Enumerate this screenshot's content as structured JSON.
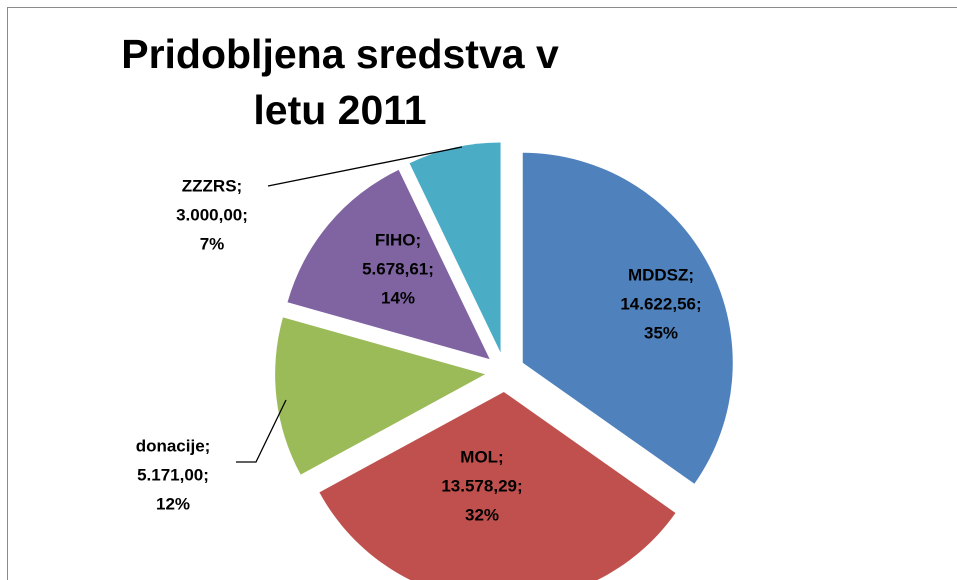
{
  "chart_data": {
    "type": "pie",
    "title": "Pridobljena sredstva v letu 2011",
    "categories": [
      "MDDSZ;",
      "MOL;",
      "donacije;",
      "FIHO;",
      "ZZZRS;"
    ],
    "values": [
      14622.56,
      13578.29,
      5171.0,
      5678.61,
      3000.0
    ],
    "value_labels": [
      "14.622,56;",
      "13.578,29;",
      "5.171,00;",
      "5.678,61;",
      "3.000,00;"
    ],
    "percents": [
      35,
      32,
      12,
      14,
      7
    ],
    "percent_labels": [
      "35%",
      "32%",
      "12%",
      "14%",
      "7%"
    ],
    "colors": [
      "#4f81bd",
      "#c0504d",
      "#9bbb59",
      "#8064a2",
      "#4bacc6"
    ]
  }
}
